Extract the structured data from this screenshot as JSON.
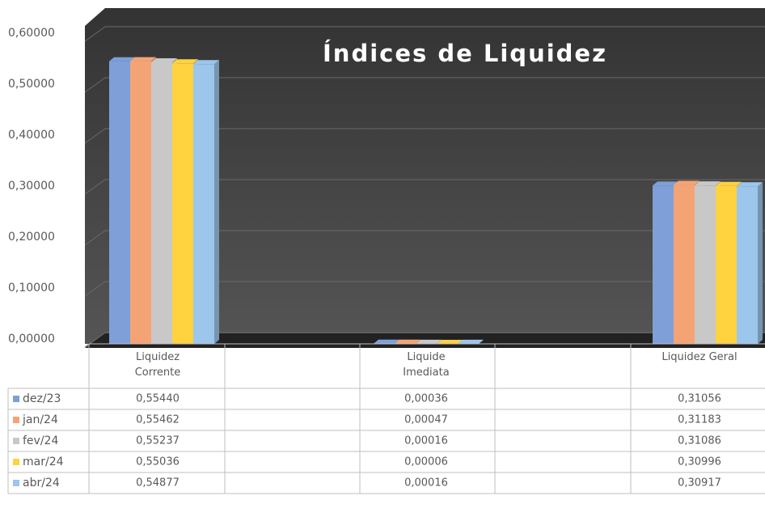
{
  "chart_data": {
    "type": "bar3d",
    "title": "Índices de Liquidez",
    "categories": [
      "Liquidez Corrente",
      "Liquide Imediata",
      "Liquidez Geral"
    ],
    "series": [
      {
        "name": "dez/23",
        "color": "#7f9fd9",
        "values": [
          0.5544,
          0.00036,
          0.31056
        ],
        "value_labels": [
          "0,55440",
          "0,00036",
          "0,31056"
        ]
      },
      {
        "name": "jan/24",
        "color": "#f4a474",
        "values": [
          0.55462,
          0.00047,
          0.31183
        ],
        "value_labels": [
          "0,55462",
          "0,00047",
          "0,31183"
        ]
      },
      {
        "name": "fev/24",
        "color": "#c8c8c8",
        "values": [
          0.55237,
          0.00016,
          0.31086
        ],
        "value_labels": [
          "0,55237",
          "0,00016",
          "0,31086"
        ]
      },
      {
        "name": "mar/24",
        "color": "#ffd23f",
        "values": [
          0.55036,
          6e-05,
          0.30996
        ],
        "value_labels": [
          "0,55036",
          "0,00006",
          "0,30996"
        ]
      },
      {
        "name": "abr/24",
        "color": "#9cc6ec",
        "values": [
          0.54877,
          0.00016,
          0.30917
        ],
        "value_labels": [
          "0,54877",
          "0,00016",
          "0,30917"
        ]
      }
    ],
    "ylim": [
      0,
      0.6
    ],
    "yticks": [
      {
        "value": 0,
        "label": "0,00000"
      },
      {
        "value": 0.1,
        "label": "0,10000"
      },
      {
        "value": 0.2,
        "label": "0,20000"
      },
      {
        "value": 0.3,
        "label": "0,30000"
      },
      {
        "value": 0.4,
        "label": "0,40000"
      },
      {
        "value": 0.5,
        "label": "0,50000"
      },
      {
        "value": 0.6,
        "label": "0,60000"
      }
    ],
    "grid": true
  }
}
